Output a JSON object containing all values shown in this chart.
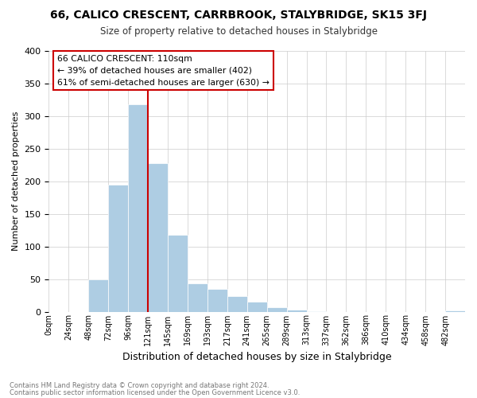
{
  "title": "66, CALICO CRESCENT, CARRBROOK, STALYBRIDGE, SK15 3FJ",
  "subtitle": "Size of property relative to detached houses in Stalybridge",
  "xlabel": "Distribution of detached houses by size in Stalybridge",
  "ylabel": "Number of detached properties",
  "bar_labels": [
    "0sqm",
    "24sqm",
    "48sqm",
    "72sqm",
    "96sqm",
    "121sqm",
    "145sqm",
    "169sqm",
    "193sqm",
    "217sqm",
    "241sqm",
    "265sqm",
    "289sqm",
    "313sqm",
    "337sqm",
    "362sqm",
    "386sqm",
    "410sqm",
    "434sqm",
    "458sqm",
    "482sqm"
  ],
  "bar_values": [
    0,
    0,
    50,
    195,
    318,
    228,
    118,
    43,
    35,
    24,
    15,
    7,
    3,
    1,
    0,
    0,
    0,
    0,
    0,
    0,
    2
  ],
  "bar_color": "#aecde3",
  "bar_edge_color": "#aecde3",
  "grid_color": "#cccccc",
  "background_color": "#ffffff",
  "vline_color": "#cc0000",
  "annotation_text": "66 CALICO CRESCENT: 110sqm\n← 39% of detached houses are smaller (402)\n61% of semi-detached houses are larger (630) →",
  "annotation_box_color": "#ffffff",
  "annotation_box_edge": "#cc0000",
  "ylim": [
    0,
    400
  ],
  "yticks": [
    0,
    50,
    100,
    150,
    200,
    250,
    300,
    350,
    400
  ],
  "footer_line1": "Contains HM Land Registry data © Crown copyright and database right 2024.",
  "footer_line2": "Contains public sector information licensed under the Open Government Licence v3.0."
}
